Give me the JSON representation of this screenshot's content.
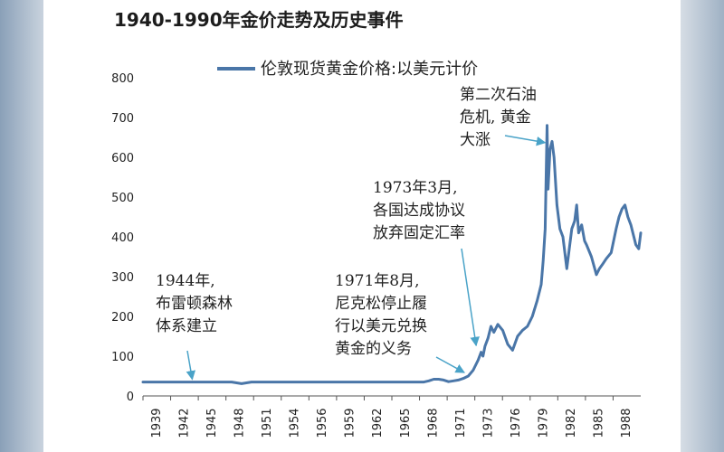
{
  "chart_data": {
    "type": "line",
    "title": "1940-1990年金价走势及历史事件",
    "xlabel": "",
    "ylabel": "",
    "ylim": [
      0,
      800
    ],
    "xlim": [
      1939,
      1989.5
    ],
    "y_ticks": [
      0,
      100,
      200,
      300,
      400,
      500,
      600,
      700,
      800
    ],
    "x_ticks": [
      "1939",
      "1942",
      "1945",
      "1948",
      "1951",
      "1954",
      "1956",
      "1959",
      "1962",
      "1965",
      "1968",
      "1971",
      "1973",
      "1976",
      "1979",
      "1982",
      "1985",
      "1988"
    ],
    "grid": false,
    "legend_position": "top",
    "series": [
      {
        "name": "伦敦现货黄金价格:以美元计价",
        "color": "#4a76a8",
        "x": [
          1939,
          1945,
          1948,
          1949,
          1950,
          1960,
          1967.5,
          1968,
          1968.5,
          1969,
          1969.5,
          1970,
          1970.5,
          1971,
          1971.5,
          1972,
          1972.5,
          1973,
          1973.3,
          1973.5,
          1973.7,
          1974,
          1974.3,
          1974.6,
          1975,
          1975.5,
          1976,
          1976.5,
          1977,
          1977.5,
          1978,
          1978.5,
          1979,
          1979.4,
          1979.6,
          1979.8,
          1980,
          1980.1,
          1980.3,
          1980.5,
          1980.7,
          1981,
          1981.3,
          1981.6,
          1982,
          1982.2,
          1982.5,
          1982.8,
          1983,
          1983.2,
          1983.5,
          1983.8,
          1984,
          1984.5,
          1985,
          1985.3,
          1985.6,
          1986,
          1986.5,
          1987,
          1987.3,
          1987.6,
          1987.9,
          1988.2,
          1988.5,
          1988.8,
          1989,
          1989.3,
          1989.5
        ],
        "values": [
          35,
          35,
          35,
          31,
          35,
          35,
          35,
          38,
          42,
          42,
          40,
          36,
          38,
          40,
          44,
          50,
          65,
          90,
          110,
          100,
          125,
          145,
          175,
          160,
          180,
          165,
          130,
          115,
          150,
          165,
          175,
          200,
          240,
          280,
          340,
          420,
          680,
          520,
          620,
          640,
          600,
          480,
          420,
          400,
          320,
          360,
          420,
          440,
          480,
          410,
          430,
          390,
          380,
          350,
          305,
          320,
          330,
          345,
          360,
          420,
          450,
          470,
          480,
          450,
          430,
          400,
          380,
          370,
          410
        ]
      }
    ],
    "annotations": [
      {
        "lines": [
          "1944年,",
          "布雷顿森林",
          "体系建立"
        ],
        "target": [
          1944,
          35
        ]
      },
      {
        "lines": [
          "1971年8月,",
          "尼克松停止履",
          "行以美元兑换",
          "黄金的义务"
        ],
        "target": [
          1971.6,
          52
        ]
      },
      {
        "lines": [
          "1973年3月,",
          "各国达成协议",
          "放弃固定汇率"
        ],
        "target": [
          1972.8,
          120
        ]
      },
      {
        "lines": [
          "第二次石油",
          "危机, 黄金",
          "大涨"
        ],
        "target": [
          1979.8,
          630
        ]
      }
    ]
  }
}
